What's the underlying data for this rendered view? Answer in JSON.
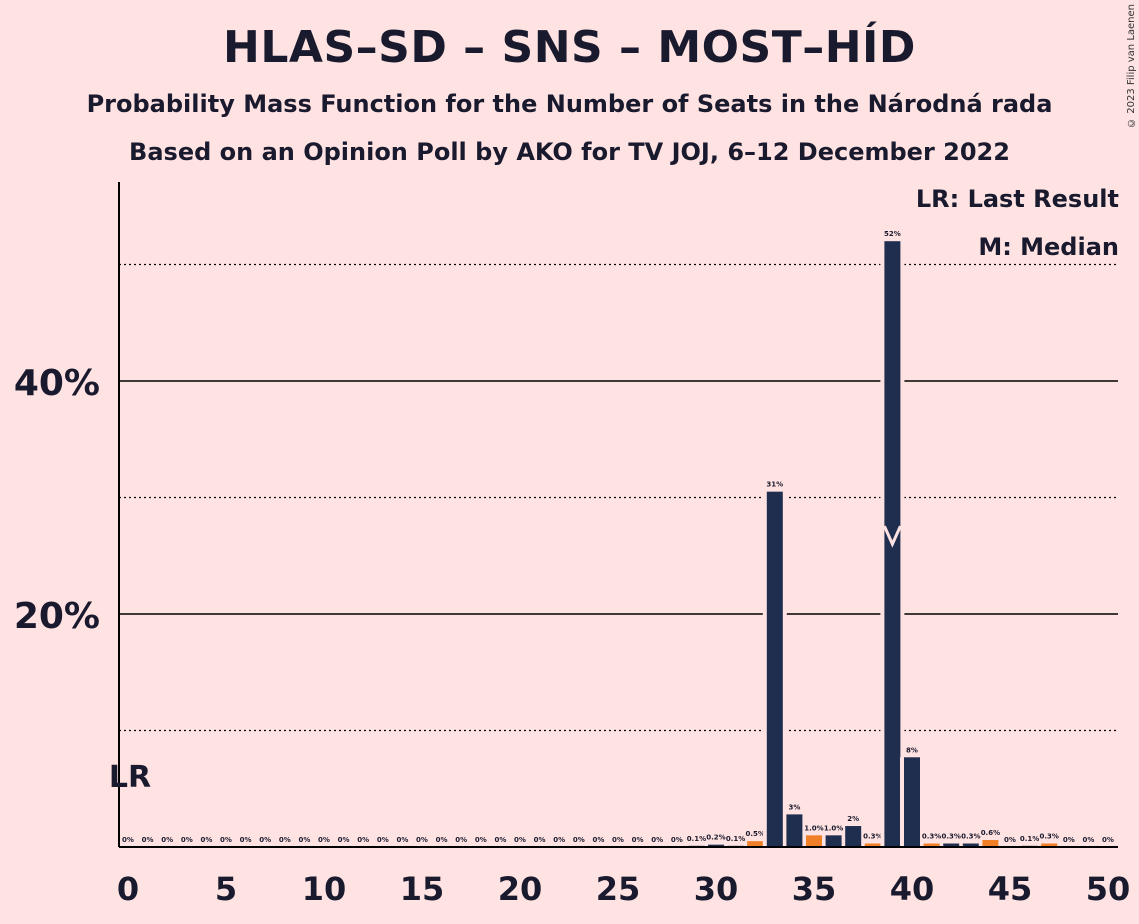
{
  "title": "HLAS–SD – SNS – MOST–HÍD",
  "subtitle1": "Probability Mass Function for the Number of Seats in the Národná rada",
  "subtitle2": "Based on an Opinion Poll by AKO for TV JOJ, 6–12 December 2022",
  "copyright": "© 2023 Filip van Laenen",
  "legend": {
    "last_result": "LR: Last Result",
    "median": "M: Median"
  },
  "colors": {
    "navy": "#1f2d4e",
    "orange": "#f07f27",
    "background": "#ffe3e3"
  },
  "chart_data": {
    "type": "bar",
    "x": [
      0,
      1,
      2,
      3,
      4,
      5,
      6,
      7,
      8,
      9,
      10,
      11,
      12,
      13,
      14,
      15,
      16,
      17,
      18,
      19,
      20,
      21,
      22,
      23,
      24,
      25,
      26,
      27,
      28,
      29,
      30,
      31,
      32,
      33,
      34,
      35,
      36,
      37,
      38,
      39,
      40,
      41,
      42,
      43,
      44,
      45,
      46,
      47,
      48,
      49,
      50
    ],
    "values": [
      0,
      0,
      0,
      0,
      0,
      0,
      0,
      0,
      0,
      0,
      0,
      0,
      0,
      0,
      0,
      0,
      0,
      0,
      0,
      0,
      0,
      0,
      0,
      0,
      0,
      0,
      0,
      0,
      0,
      0.1,
      0.2,
      0.1,
      0.5,
      30.5,
      2.8,
      1.0,
      1.0,
      1.8,
      0.3,
      52.0,
      7.7,
      0.3,
      0.3,
      0.3,
      0.6,
      0,
      0.1,
      0.3,
      0,
      0,
      0
    ],
    "labels": [
      "0%",
      "0%",
      "0%",
      "0%",
      "0%",
      "0%",
      "0%",
      "0%",
      "0%",
      "0%",
      "0%",
      "0%",
      "0%",
      "0%",
      "0%",
      "0%",
      "0%",
      "0%",
      "0%",
      "0%",
      "0%",
      "0%",
      "0%",
      "0%",
      "0%",
      "0%",
      "0%",
      "0%",
      "0%",
      "0.1%",
      "0.2%",
      "0.1%",
      "0.5%",
      "31%",
      "3%",
      "1.0%",
      "1.0%",
      "2%",
      "0.3%",
      "52%",
      "8%",
      "0.3%",
      "0.3%",
      "0.3%",
      "0.6%",
      "0%",
      "0.1%",
      "0.3%",
      "0%",
      "0%",
      "0%"
    ],
    "bar_colors": [
      "navy",
      "navy",
      "navy",
      "navy",
      "navy",
      "navy",
      "navy",
      "navy",
      "navy",
      "navy",
      "navy",
      "navy",
      "navy",
      "navy",
      "navy",
      "navy",
      "navy",
      "navy",
      "navy",
      "navy",
      "navy",
      "navy",
      "navy",
      "navy",
      "navy",
      "navy",
      "navy",
      "navy",
      "navy",
      "navy",
      "navy",
      "navy",
      "orange",
      "navy",
      "navy",
      "orange",
      "navy",
      "navy",
      "orange",
      "navy",
      "navy",
      "orange",
      "navy",
      "navy",
      "orange",
      "navy",
      "navy",
      "orange",
      "navy",
      "navy",
      "navy"
    ],
    "x_ticks": [
      0,
      5,
      10,
      15,
      20,
      25,
      30,
      35,
      40,
      45,
      50
    ],
    "x_tick_labels": [
      "0",
      "5",
      "10",
      "15",
      "20",
      "25",
      "30",
      "35",
      "40",
      "45",
      "50"
    ],
    "y_ticks_major": [
      20,
      40
    ],
    "y_tick_labels": [
      "20%",
      "40%"
    ],
    "y_ticks_minor": [
      10,
      30,
      50
    ],
    "ylim": [
      0,
      57
    ],
    "last_result_seat": 0,
    "last_result_label": "LR",
    "median_seat": 39,
    "median_marker_value": 26
  }
}
